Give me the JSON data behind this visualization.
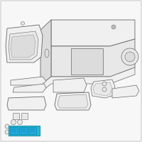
{
  "background_color": "#f7f7f7",
  "border_color": "#cccccc",
  "line_color": "#888888",
  "line_color_dark": "#666666",
  "highlight_color": "#29b6d4",
  "highlight_dark": "#1a95aa",
  "fig_width": 2.0,
  "fig_height": 2.0,
  "dpi": 100,
  "part_fill": "#f0f0f0",
  "part_fill2": "#e8e8e8",
  "part_fill3": "#dcdcdc"
}
